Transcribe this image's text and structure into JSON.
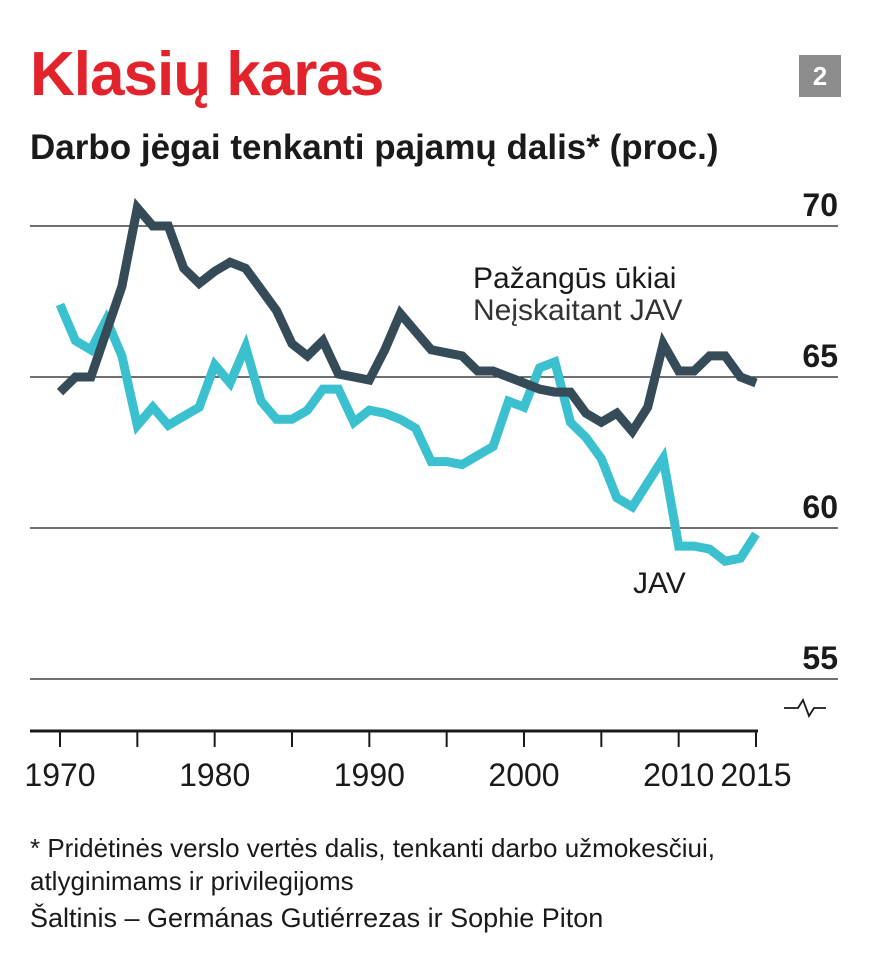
{
  "header": {
    "title": "Klasių karas",
    "subtitle": "Darbo jėgai tenkanti pajamų dalis* (proc.)",
    "badge": "2"
  },
  "footer": {
    "footnote": "* Pridėtinės verslo vertės dalis, tenkanti darbo užmokesčiui, atlyginimams ir privilegijoms",
    "source": "Šaltinis – Germánas Gutiérrezas ir Sophie Piton"
  },
  "colors": {
    "title": "#e3232b",
    "advanced": "#364b58",
    "usa": "#3bc0cf",
    "grid": "#1a1a1a"
  },
  "chart_data": {
    "type": "line",
    "x": [
      1970,
      1971,
      1972,
      1973,
      1974,
      1975,
      1976,
      1977,
      1978,
      1979,
      1980,
      1981,
      1982,
      1983,
      1984,
      1985,
      1986,
      1987,
      1988,
      1989,
      1990,
      1991,
      1992,
      1993,
      1994,
      1995,
      1996,
      1997,
      1998,
      1999,
      2000,
      2001,
      2002,
      2003,
      2004,
      2005,
      2006,
      2007,
      2008,
      2009,
      2010,
      2011,
      2012,
      2013,
      2014,
      2015
    ],
    "series": [
      {
        "name": "Pažangūs ūkiai",
        "sublabel": "Neįskaitant JAV",
        "color": "#364b58",
        "values": [
          64.5,
          65.0,
          65.0,
          66.5,
          68.0,
          70.6,
          70.0,
          70.0,
          68.6,
          68.1,
          68.5,
          68.8,
          68.6,
          67.9,
          67.2,
          66.1,
          65.7,
          66.2,
          65.1,
          65.0,
          64.9,
          65.9,
          67.1,
          66.5,
          65.9,
          65.8,
          65.7,
          65.2,
          65.2,
          65.0,
          64.8,
          64.6,
          64.5,
          64.5,
          63.8,
          63.5,
          63.8,
          63.2,
          64.0,
          66.1,
          65.2,
          65.2,
          65.7,
          65.7,
          65.0,
          64.8
        ]
      },
      {
        "name": "JAV",
        "color": "#3bc0cf",
        "values": [
          67.4,
          66.2,
          65.9,
          66.9,
          65.7,
          63.4,
          64.0,
          63.4,
          63.7,
          64.0,
          65.4,
          64.8,
          66.0,
          64.2,
          63.6,
          63.6,
          63.9,
          64.6,
          64.6,
          63.5,
          63.9,
          63.8,
          63.6,
          63.3,
          62.2,
          62.2,
          62.1,
          62.4,
          62.7,
          64.2,
          64.0,
          65.3,
          65.5,
          63.5,
          63.0,
          62.3,
          61.0,
          60.7,
          61.5,
          62.3,
          59.4,
          59.4,
          59.3,
          58.9,
          59.0,
          59.8
        ]
      }
    ],
    "yticks": [
      70,
      65,
      60,
      55
    ],
    "xticks": [
      1970,
      1980,
      1990,
      2000,
      2010,
      2015
    ],
    "ylim": [
      55,
      71
    ],
    "xlim": [
      1970,
      2015
    ],
    "y_axis_break": true,
    "grid": true,
    "xlabel": "",
    "ylabel": ""
  }
}
